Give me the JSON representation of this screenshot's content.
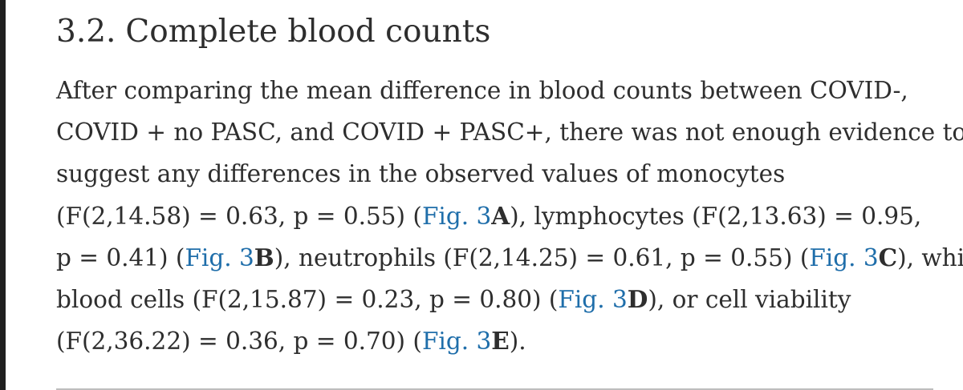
{
  "section": {
    "number": "3.2.",
    "title": "Complete blood counts"
  },
  "paragraph": {
    "l1": "After comparing the mean difference in blood counts between COVID-,",
    "l2": "COVID + no PASC, and COVID + PASC+, there was not enough evidence to",
    "l3": "suggest any differences in the observed values of monocytes",
    "l4_a": "(F(2,14.58) = 0.63, p = 0.55) (",
    "l4_b": "), lymphocytes (F(2,13.63) = 0.95,",
    "l5_a": "p = 0.41) (",
    "l5_b": "), neutrophils (F(2,14.25) = 0.61, p = 0.55) (",
    "l5_c": "), white",
    "l6_a": "blood cells (F(2,15.87) = 0.23, p = 0.80) (",
    "l6_b": "), or cell viability",
    "l7_a": "(F(2,36.22) = 0.36, p = 0.70) (",
    "l7_b": ")."
  },
  "figure_refs": [
    {
      "text": "Fig. 3",
      "panel": "A"
    },
    {
      "text": "Fig. 3",
      "panel": "B"
    },
    {
      "text": "Fig. 3",
      "panel": "C"
    },
    {
      "text": "Fig. 3",
      "panel": "D"
    },
    {
      "text": "Fig. 3",
      "panel": "E"
    }
  ]
}
